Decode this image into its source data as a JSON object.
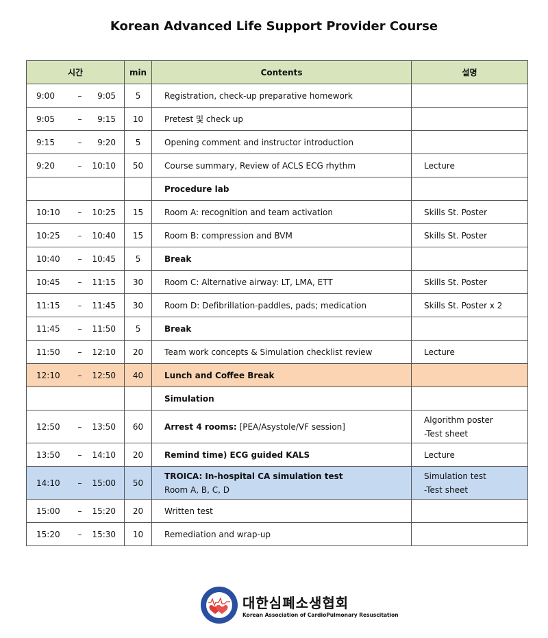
{
  "title": "Korean Advanced Life Support Provider Course",
  "headers": {
    "time": "시간",
    "min": "min",
    "contents": "Contents",
    "note": "설명"
  },
  "dash": "–",
  "rows": [
    {
      "start": "9:00",
      "end": "9:05",
      "min": "5",
      "text": "Registration, check-up preparative homework",
      "note": ""
    },
    {
      "start": "9:05",
      "end": "9:15",
      "min": "10",
      "text": "Pretest 및 check up",
      "note": ""
    },
    {
      "start": "9:15",
      "end": "9:20",
      "min": "5",
      "text": "Opening comment and instructor introduction",
      "note": ""
    },
    {
      "start": "9:20",
      "end": "10:10",
      "min": "50",
      "text": "Course summary, Review of ACLS ECG rhythm",
      "note": "Lecture"
    },
    {
      "type": "section",
      "bold": "Procedure lab"
    },
    {
      "start": "10:10",
      "end": "10:25",
      "min": "15",
      "text": "Room A: recognition and team activation",
      "note": "Skills St. Poster"
    },
    {
      "start": "10:25",
      "end": "10:40",
      "min": "15",
      "text": "Room B: compression and BVM",
      "note": "Skills St. Poster"
    },
    {
      "start": "10:40",
      "end": "10:45",
      "min": "5",
      "bold": "Break",
      "note": ""
    },
    {
      "start": "10:45",
      "end": "11:15",
      "min": "30",
      "text": "Room C: Alternative airway: LT, LMA, ETT",
      "note": "Skills St. Poster"
    },
    {
      "start": "11:15",
      "end": "11:45",
      "min": "30",
      "text": "Room D: Defibrillation-paddles, pads; medication",
      "note": "Skills St. Poster x 2"
    },
    {
      "start": "11:45",
      "end": "11:50",
      "min": "5",
      "bold": "Break",
      "note": ""
    },
    {
      "start": "11:50",
      "end": "12:10",
      "min": "20",
      "text": "Team work concepts & Simulation checklist review",
      "note": "Lecture"
    },
    {
      "type": "lunch",
      "start": "12:10",
      "end": "12:50",
      "min": "40",
      "bold": "Lunch and Coffee Break",
      "note": ""
    },
    {
      "type": "section",
      "bold": "Simulation"
    },
    {
      "type": "tall",
      "start": "12:50",
      "end": "13:50",
      "min": "60",
      "bold": "Arrest 4 rooms:",
      "text": " [PEA/Asystole/VF session]",
      "note": "Algorithm poster",
      "note2": "-Test sheet"
    },
    {
      "start": "13:50",
      "end": "14:10",
      "min": "20",
      "bold": "Remind time) ECG guided KALS",
      "note": "Lecture"
    },
    {
      "type": "troica",
      "start": "14:10",
      "end": "15:00",
      "min": "50",
      "bold": "TROICA: In-hospital CA simulation test",
      "line2": "Room A, B, C, D",
      "note": "Simulation test",
      "note2": "-Test sheet"
    },
    {
      "start": "15:00",
      "end": "15:20",
      "min": "20",
      "text": "Written test",
      "note": ""
    },
    {
      "start": "15:20",
      "end": "15:30",
      "min": "10",
      "text": "Remediation and wrap-up",
      "note": ""
    }
  ],
  "logo": {
    "korean": "대한심폐소생협회",
    "english": "Korean Association of CardioPulmonary Resuscitation",
    "seal_text": "Korean Association of CardioPulmonary Resuscitation 대한심폐소생협회",
    "colors": {
      "blue": "#2a4fa0",
      "red": "#e0302a"
    }
  }
}
